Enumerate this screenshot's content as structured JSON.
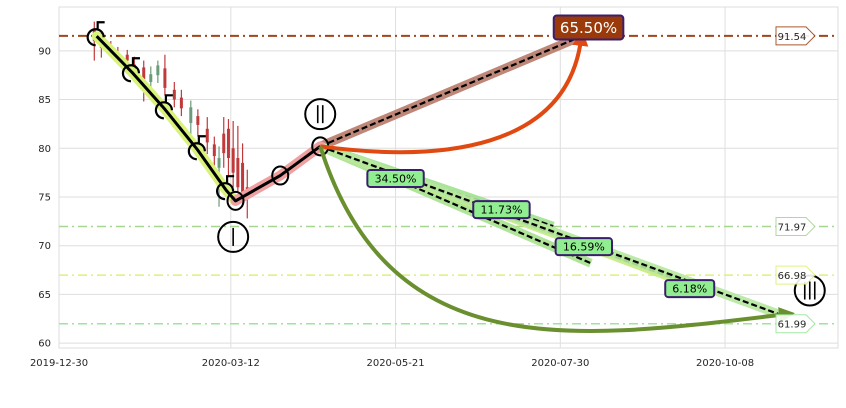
{
  "chart_data": {
    "type": "line",
    "title": "",
    "xlabel": "",
    "ylabel": "",
    "x_ticks": [
      "2019-12-30",
      "2020-03-12",
      "2020-05-21",
      "2020-07-30",
      "2020-10-08"
    ],
    "y_ticks": [
      60,
      65,
      70,
      75,
      80,
      85,
      90
    ],
    "ylim": [
      59.5,
      94.5
    ],
    "xlim": [
      "2019-12-30",
      "2020-11-25"
    ],
    "grid": true,
    "candles": [
      {
        "d": "2020-01-14",
        "o": 92.3,
        "c": 91.0,
        "h": 93.0,
        "l": 89.0
      },
      {
        "d": "2020-01-17",
        "o": 91.2,
        "c": 90.3,
        "h": 92.0,
        "l": 89.3
      },
      {
        "d": "2020-01-21",
        "o": 90.5,
        "c": 90.1,
        "h": 91.0,
        "l": 89.4
      },
      {
        "d": "2020-01-24",
        "o": 89.8,
        "c": 89.6,
        "h": 90.4,
        "l": 88.8
      },
      {
        "d": "2020-01-28",
        "o": 89.6,
        "c": 89.0,
        "h": 90.1,
        "l": 88.2
      },
      {
        "d": "2020-01-31",
        "o": 88.6,
        "c": 87.8,
        "h": 89.4,
        "l": 86.8
      },
      {
        "d": "2020-02-04",
        "o": 88.3,
        "c": 87.1,
        "h": 89.0,
        "l": 84.8
      },
      {
        "d": "2020-02-07",
        "o": 86.8,
        "c": 87.6,
        "h": 88.4,
        "l": 85.9
      },
      {
        "d": "2020-02-10",
        "o": 87.5,
        "c": 88.5,
        "h": 89.0,
        "l": 86.7
      },
      {
        "d": "2020-02-13",
        "o": 88.2,
        "c": 86.2,
        "h": 89.6,
        "l": 85.4
      },
      {
        "d": "2020-02-17",
        "o": 86.0,
        "c": 85.0,
        "h": 86.8,
        "l": 84.2
      },
      {
        "d": "2020-02-20",
        "o": 85.2,
        "c": 84.1,
        "h": 86.0,
        "l": 83.3
      },
      {
        "d": "2020-02-24",
        "o": 82.6,
        "c": 84.2,
        "h": 84.9,
        "l": 81.3
      },
      {
        "d": "2020-02-27",
        "o": 83.3,
        "c": 82.4,
        "h": 84.0,
        "l": 81.2
      },
      {
        "d": "2020-03-02",
        "o": 82.0,
        "c": 80.6,
        "h": 83.2,
        "l": 79.4
      },
      {
        "d": "2020-03-05",
        "o": 80.4,
        "c": 79.2,
        "h": 81.2,
        "l": 78.0
      },
      {
        "d": "2020-03-07",
        "o": 78.0,
        "c": 79.0,
        "h": 80.2,
        "l": 74.0
      },
      {
        "d": "2020-03-09",
        "o": 81.5,
        "c": 79.5,
        "h": 83.2,
        "l": 78.0
      },
      {
        "d": "2020-03-11",
        "o": 82.0,
        "c": 79.0,
        "h": 83.0,
        "l": 77.2
      },
      {
        "d": "2020-03-13",
        "o": 80.0,
        "c": 77.5,
        "h": 82.8,
        "l": 76.0
      },
      {
        "d": "2020-03-15",
        "o": 79.0,
        "c": 76.0,
        "h": 82.3,
        "l": 75.5
      },
      {
        "d": "2020-03-17",
        "o": 78.5,
        "c": 75.5,
        "h": 80.5,
        "l": 74.0
      },
      {
        "d": "2020-03-19",
        "o": 76.0,
        "c": 75.0,
        "h": 77.8,
        "l": 72.8
      }
    ],
    "trend_path": [
      {
        "d": "2020-01-15",
        "y": 91.5
      },
      {
        "d": "2020-01-30",
        "y": 87.8
      },
      {
        "d": "2020-02-13",
        "y": 84.0
      },
      {
        "d": "2020-02-27",
        "y": 79.8
      },
      {
        "d": "2020-03-10",
        "y": 75.7
      },
      {
        "d": "2020-03-14",
        "y": 74.6
      },
      {
        "d": "2020-04-02",
        "y": 77.2
      },
      {
        "d": "2020-04-19",
        "y": 80.2
      }
    ],
    "wave_markers": [
      {
        "d": "2020-01-15",
        "y": 91.5,
        "kind": "s"
      },
      {
        "d": "2020-01-30",
        "y": 87.8,
        "kind": "s"
      },
      {
        "d": "2020-02-13",
        "y": 84.0,
        "kind": "s"
      },
      {
        "d": "2020-02-27",
        "y": 79.8,
        "kind": "s"
      },
      {
        "d": "2020-03-10",
        "y": 75.7,
        "kind": "s"
      },
      {
        "d": "2020-03-14",
        "y": 74.6,
        "kind": "o"
      },
      {
        "d": "2020-04-02",
        "y": 77.2,
        "kind": "o"
      },
      {
        "d": "2020-04-19",
        "y": 80.2,
        "kind": "o"
      }
    ],
    "wave_labels": [
      {
        "d": "2020-03-13",
        "y": 70.9,
        "label": "I"
      },
      {
        "d": "2020-04-19",
        "y": 83.5,
        "label": "II"
      },
      {
        "d": "2020-11-13",
        "y": 65.4,
        "label": "III"
      }
    ],
    "target_lines": [
      {
        "name": "91.54",
        "value": 91.54,
        "color": "#a0461b",
        "style": "dashdot",
        "width": 2
      },
      {
        "name": "71.97",
        "value": 71.97,
        "color": "#a7d690",
        "style": "dashdot",
        "width": 1.5
      },
      {
        "name": "66.98",
        "value": 66.98,
        "color": "#d9f27a",
        "style": "dashdot",
        "width": 1.5
      },
      {
        "name": "61.99",
        "value": 61.99,
        "color": "#9be69a",
        "style": "dashdot",
        "width": 1.5
      }
    ],
    "projections": [
      {
        "label": "65.50%",
        "from": {
          "d": "2020-04-19",
          "y": 80.2
        },
        "to": {
          "d": "2020-08-08",
          "y": 91.5
        },
        "band": "#b87b6a",
        "label_bg": "#9a3a0a",
        "label_fg": "#ffffff",
        "label_at": {
          "d": "2020-08-11",
          "y": 92.4
        }
      },
      {
        "label": "34.50%",
        "from": {
          "d": "2020-04-19",
          "y": 80.2
        },
        "to": {
          "d": "2020-07-27",
          "y": 72.0
        },
        "band": "#9fe28f",
        "label_bg": "#90ee90",
        "label_fg": "#000000",
        "label_at": {
          "d": "2020-05-21",
          "y": 76.9
        }
      },
      {
        "label": "11.73%",
        "from": {
          "d": "2020-04-19",
          "y": 80.2
        },
        "to": {
          "d": "2020-08-12",
          "y": 68.2
        },
        "band": "#a7e28f",
        "label_bg": "#90ee90",
        "label_fg": "#000000",
        "label_at": {
          "d": "2020-07-05",
          "y": 73.7
        }
      },
      {
        "label": "16.59%",
        "from": {
          "d": "2020-04-19",
          "y": 80.2
        },
        "to": {
          "d": "2020-09-20",
          "y": 66.3
        },
        "band": "#c8ec80",
        "label_bg": "#90ee90",
        "label_fg": "#000000",
        "label_at": {
          "d": "2020-08-09",
          "y": 69.9
        }
      },
      {
        "label": "6.18%",
        "from": {
          "d": "2020-04-19",
          "y": 80.2
        },
        "to": {
          "d": "2020-11-03",
          "y": 62.7
        },
        "band": "#b6e8a0",
        "label_bg": "#90ee90",
        "label_fg": "#000000",
        "label_at": {
          "d": "2020-09-23",
          "y": 65.6
        }
      }
    ],
    "curved_arrows": [
      {
        "from": {
          "d": "2020-04-19",
          "y": 80.2
        },
        "to": {
          "d": "2020-08-08",
          "y": 91.5
        },
        "color": "#e04a12",
        "bend": "down"
      },
      {
        "from": {
          "d": "2020-04-19",
          "y": 80.2
        },
        "to": {
          "d": "2020-11-04",
          "y": 63.0
        },
        "color": "#6a8f2f",
        "bend": "down"
      }
    ],
    "colors": {
      "up": "#6a9b7a",
      "down": "#c0393b",
      "trend": "#000000",
      "trend_glow_1": "#d9f27a",
      "trend_glow_2": "#f0a0a0"
    }
  }
}
